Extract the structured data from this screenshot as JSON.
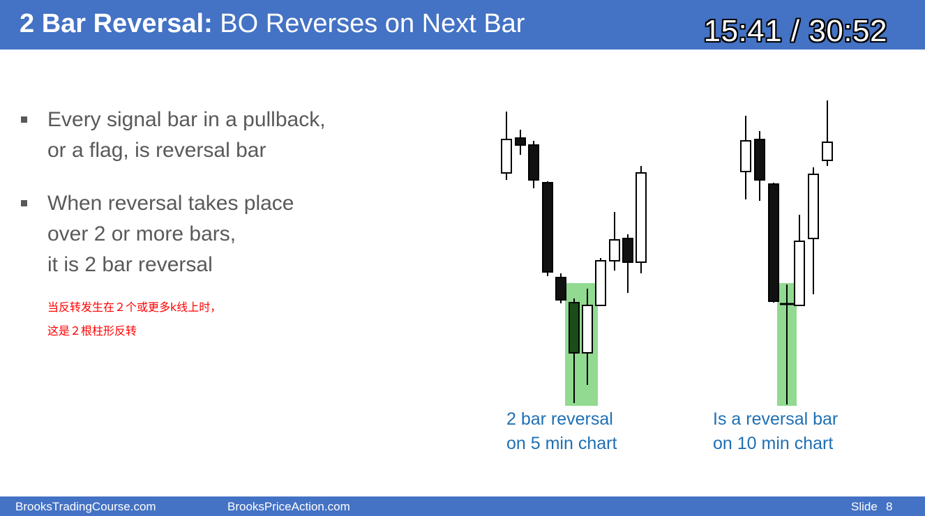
{
  "header": {
    "title_bold": "2 Bar Reversal:",
    "title_rest": " BO Reverses on Next Bar",
    "timer": "15:41 / 30:52"
  },
  "bullets": [
    {
      "lines": [
        "Every signal bar in a pullback,",
        "or a flag, is reversal bar"
      ]
    },
    {
      "lines": [
        "When reversal takes place",
        "over 2 or more bars,",
        "it is 2 bar reversal"
      ]
    }
  ],
  "annotation_cn": [
    "当反转发生在２个或更多k线上时，",
    "这是２根柱形反转"
  ],
  "captions": {
    "left": [
      "2 bar reversal",
      "on 5 min chart"
    ],
    "right": [
      "Is a reversal bar",
      "on 10 min chart"
    ]
  },
  "colors": {
    "header": "#4472c4",
    "caption": "#1f6fb3",
    "highlight": "#7fd47f",
    "annotation": "#ff0000"
  },
  "footer": {
    "left": "BrooksTradingCourse.com",
    "middle": "BrooksPriceAction.com",
    "slide_label": "Slide",
    "slide_number": "8"
  }
}
